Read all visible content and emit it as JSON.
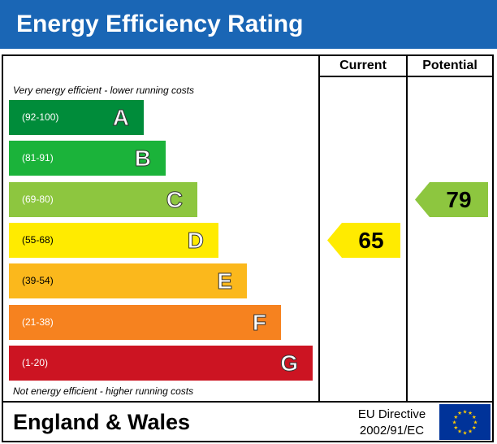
{
  "title": "Energy Efficiency Rating",
  "columns": {
    "current": "Current",
    "potential": "Potential"
  },
  "notes": {
    "top": "Very energy efficient - lower running costs",
    "bottom": "Not energy efficient - higher running costs"
  },
  "footer": {
    "region": "England & Wales",
    "directive_line1": "EU Directive",
    "directive_line2": "2002/91/EC"
  },
  "colors": {
    "title_bar": "#1a66b5",
    "eu_flag": "#003399",
    "eu_stars": "#ffcc00"
  },
  "chart_data": {
    "type": "bar",
    "bands": [
      {
        "letter": "A",
        "range": "(92-100)",
        "min": 92,
        "max": 100,
        "color": "#008c3a",
        "range_color": "#ffffff"
      },
      {
        "letter": "B",
        "range": "(81-91)",
        "min": 81,
        "max": 91,
        "color": "#1bb33a",
        "range_color": "#ffffff"
      },
      {
        "letter": "C",
        "range": "(69-80)",
        "min": 69,
        "max": 80,
        "color": "#8dc63f",
        "range_color": "#ffffff"
      },
      {
        "letter": "D",
        "range": "(55-68)",
        "min": 55,
        "max": 68,
        "color": "#ffeb00",
        "range_color": "#000000"
      },
      {
        "letter": "E",
        "range": "(39-54)",
        "min": 39,
        "max": 54,
        "color": "#fbb81c",
        "range_color": "#000000"
      },
      {
        "letter": "F",
        "range": "(21-38)",
        "min": 21,
        "max": 38,
        "color": "#f6821f",
        "range_color": "#ffffff"
      },
      {
        "letter": "G",
        "range": "(1-20)",
        "min": 1,
        "max": 20,
        "color": "#cc1422",
        "range_color": "#ffffff"
      }
    ],
    "current": {
      "value": 65,
      "band": "D",
      "color": "#ffeb00"
    },
    "potential": {
      "value": 79,
      "band": "C",
      "color": "#8dc63f"
    }
  }
}
